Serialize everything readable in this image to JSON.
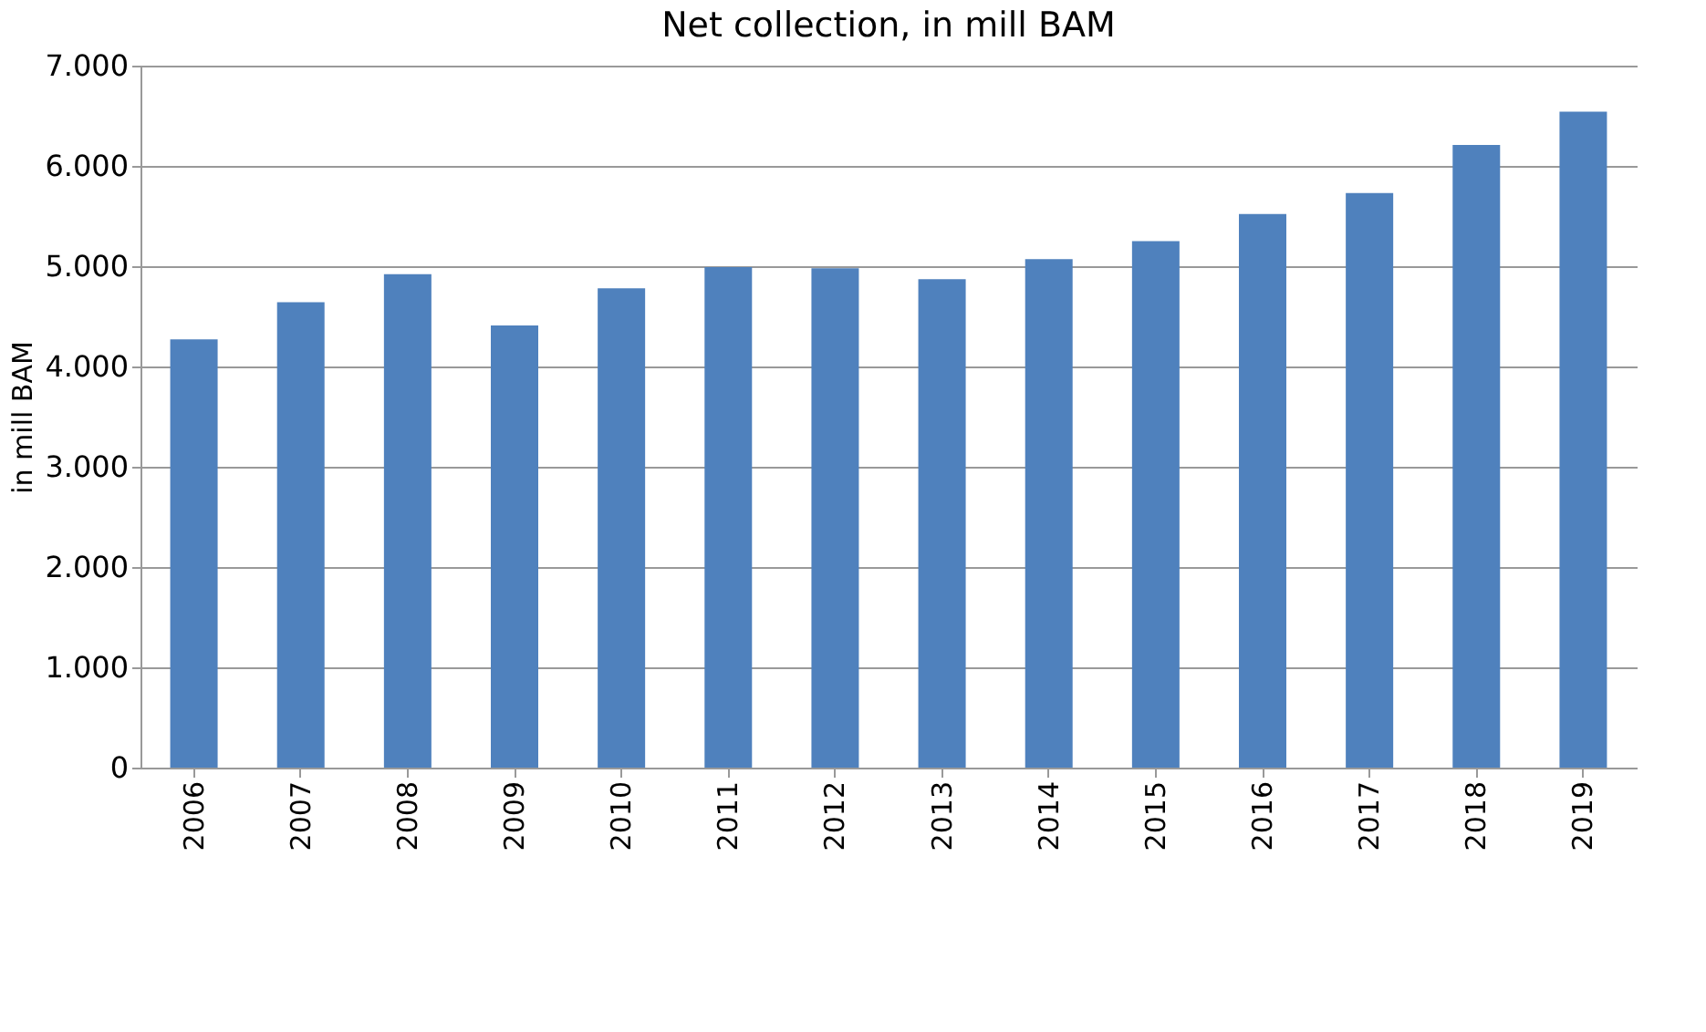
{
  "chart_data": {
    "type": "bar",
    "title": "Net collection, in mill BAM",
    "ylabel": "in mill BAM",
    "categories": [
      "2006",
      "2007",
      "2008",
      "2009",
      "2010",
      "2011",
      "2012",
      "2013",
      "2014",
      "2015",
      "2016",
      "2017",
      "2018",
      "2019"
    ],
    "values": [
      4270,
      4640,
      4920,
      4410,
      4780,
      4990,
      4980,
      4870,
      5070,
      5250,
      5520,
      5730,
      6210,
      6540
    ],
    "color": "#4f81bd",
    "ylim": [
      0,
      7000
    ],
    "yticks": [
      {
        "value": 0,
        "label": "0"
      },
      {
        "value": 1000,
        "label": "1.000"
      },
      {
        "value": 2000,
        "label": "2.000"
      },
      {
        "value": 3000,
        "label": "3.000"
      },
      {
        "value": 4000,
        "label": "4.000"
      },
      {
        "value": 5000,
        "label": "5.000"
      },
      {
        "value": 6000,
        "label": "6.000"
      },
      {
        "value": 7000,
        "label": "7.000"
      }
    ],
    "grid": "y"
  }
}
